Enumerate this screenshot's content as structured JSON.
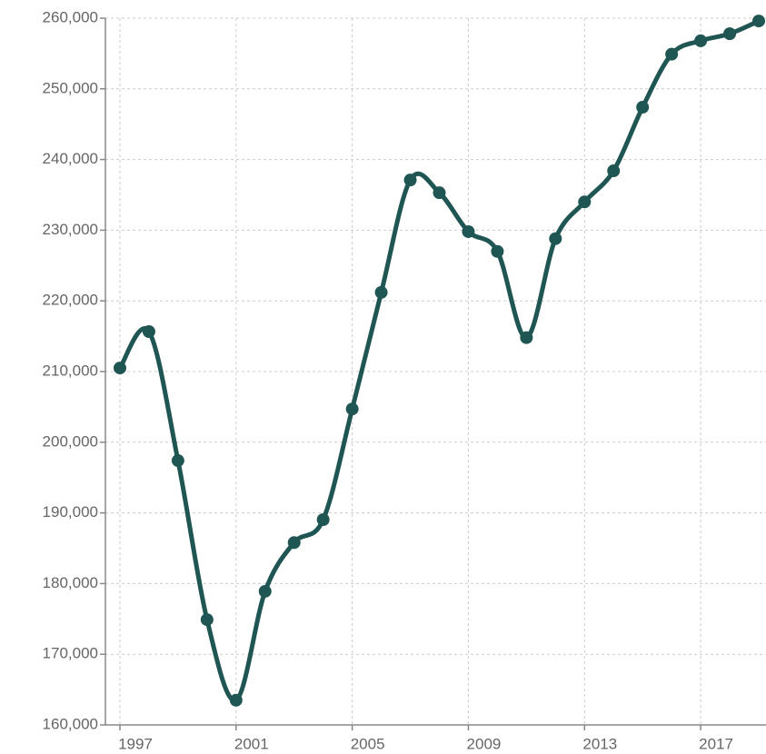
{
  "chart_data": {
    "type": "line",
    "x": [
      1997,
      1998,
      1999,
      2000,
      2001,
      2002,
      2003,
      2004,
      2005,
      2006,
      2007,
      2008,
      2009,
      2010,
      2011,
      2012,
      2013,
      2014,
      2015,
      2016,
      2017,
      2018,
      2019
    ],
    "series": [
      {
        "color": "#1f5552",
        "values": [
          210500,
          215650,
          197400,
          174900,
          163500,
          178900,
          185800,
          189050,
          204700,
          221200,
          237100,
          235300,
          229800,
          227000,
          214800,
          228800,
          234000,
          238400,
          247400,
          254900,
          256800,
          257800,
          259600
        ]
      }
    ],
    "xlim": [
      1996.5,
      2019.25
    ],
    "xticks": [
      1997,
      2001,
      2005,
      2009,
      2013,
      2017
    ],
    "ylim": [
      160000,
      260000
    ],
    "yticks": [
      {
        "value": 160000,
        "label": "160,000"
      },
      {
        "value": 170000,
        "label": "170,000"
      },
      {
        "value": 180000,
        "label": "180,000"
      },
      {
        "value": 190000,
        "label": "190,000"
      },
      {
        "value": 200000,
        "label": "200,000"
      },
      {
        "value": 210000,
        "label": "210,000"
      },
      {
        "value": 220000,
        "label": "220,000"
      },
      {
        "value": 230000,
        "label": "230,000"
      },
      {
        "value": 240000,
        "label": "240,000"
      },
      {
        "value": 250000,
        "label": "250,000"
      },
      {
        "value": 260000,
        "label": "260,000"
      }
    ],
    "grid": true
  }
}
